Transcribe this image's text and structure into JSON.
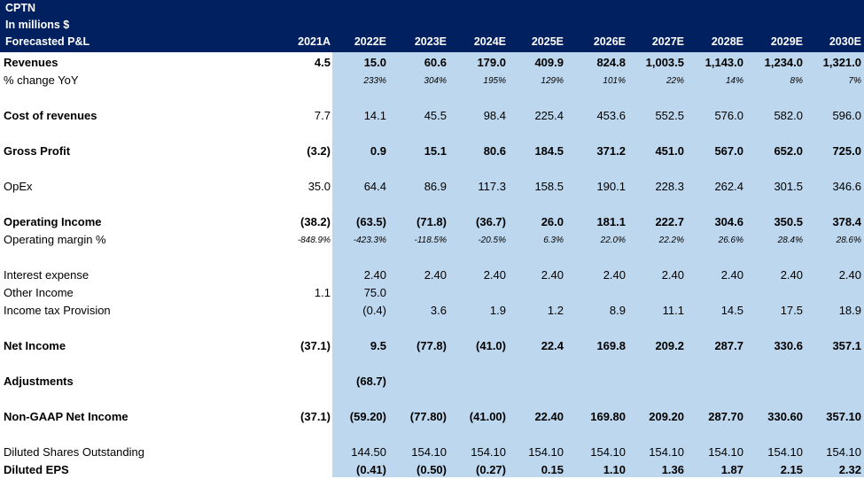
{
  "header": {
    "lines": [
      "CPTN",
      "In millions $",
      "Forecasted P&L"
    ],
    "years": [
      "2021A",
      "2022E",
      "2023E",
      "2024E",
      "2025E",
      "2026E",
      "2027E",
      "2028E",
      "2029E",
      "2030E"
    ]
  },
  "rows": [
    {
      "label": "Revenues",
      "style": "bold",
      "values": [
        "4.5",
        "15.0",
        "60.6",
        "179.0",
        "409.9",
        "824.8",
        "1,003.5",
        "1,143.0",
        "1,234.0",
        "1,321.0"
      ]
    },
    {
      "label": "% change YoY",
      "style": "pct",
      "values": [
        "",
        "233%",
        "304%",
        "195%",
        "129%",
        "101%",
        "22%",
        "14%",
        "8%",
        "7%"
      ]
    },
    {
      "label": "Cost of revenues",
      "style": "boldlabel",
      "values": [
        "7.7",
        "14.1",
        "45.5",
        "98.4",
        "225.4",
        "453.6",
        "552.5",
        "576.0",
        "582.0",
        "596.0"
      ]
    },
    {
      "label": "Gross Profit",
      "style": "bold",
      "values": [
        "(3.2)",
        "0.9",
        "15.1",
        "80.6",
        "184.5",
        "371.2",
        "451.0",
        "567.0",
        "652.0",
        "725.0"
      ]
    },
    {
      "label": "OpEx",
      "style": "normal",
      "values": [
        "35.0",
        "64.4",
        "86.9",
        "117.3",
        "158.5",
        "190.1",
        "228.3",
        "262.4",
        "301.5",
        "346.6"
      ]
    },
    {
      "label": "Operating Income",
      "style": "bold",
      "values": [
        "(38.2)",
        "(63.5)",
        "(71.8)",
        "(36.7)",
        "26.0",
        "181.1",
        "222.7",
        "304.6",
        "350.5",
        "378.4"
      ]
    },
    {
      "label": "Operating margin %",
      "style": "pct",
      "values": [
        "-848.9%",
        "-423.3%",
        "-118.5%",
        "-20.5%",
        "6.3%",
        "22.0%",
        "22.2%",
        "26.6%",
        "28.4%",
        "28.6%"
      ]
    },
    {
      "label": "Interest expense",
      "style": "normal",
      "values": [
        "",
        "2.40",
        "2.40",
        "2.40",
        "2.40",
        "2.40",
        "2.40",
        "2.40",
        "2.40",
        "2.40"
      ]
    },
    {
      "label": "Other Income",
      "style": "normal",
      "values": [
        "1.1",
        "75.0",
        "",
        "",
        "",
        "",
        "",
        "",
        "",
        ""
      ]
    },
    {
      "label": "Income tax Provision",
      "style": "normal",
      "values": [
        "",
        "(0.4)",
        "3.6",
        "1.9",
        "1.2",
        "8.9",
        "11.1",
        "14.5",
        "17.5",
        "18.9"
      ]
    },
    {
      "label": "Net Income",
      "style": "bold",
      "values": [
        "(37.1)",
        "9.5",
        "(77.8)",
        "(41.0)",
        "22.4",
        "169.8",
        "209.2",
        "287.7",
        "330.6",
        "357.1"
      ]
    },
    {
      "label": "Adjustments",
      "style": "bold",
      "values": [
        "",
        "(68.7)",
        "",
        "",
        "",
        "",
        "",
        "",
        "",
        ""
      ]
    },
    {
      "label": "Non-GAAP Net Income",
      "style": "bold",
      "values": [
        "(37.1)",
        "(59.20)",
        "(77.80)",
        "(41.00)",
        "22.40",
        "169.80",
        "209.20",
        "287.70",
        "330.60",
        "357.10"
      ]
    },
    {
      "label": "Diluted Shares Outstanding",
      "style": "normal",
      "values": [
        "",
        "144.50",
        "154.10",
        "154.10",
        "154.10",
        "154.10",
        "154.10",
        "154.10",
        "154.10",
        "154.10"
      ]
    },
    {
      "label": "Diluted EPS",
      "style": "bold",
      "values": [
        "",
        "(0.41)",
        "(0.50)",
        "(0.27)",
        "0.15",
        "1.10",
        "1.36",
        "1.87",
        "2.15",
        "2.32"
      ]
    }
  ]
}
